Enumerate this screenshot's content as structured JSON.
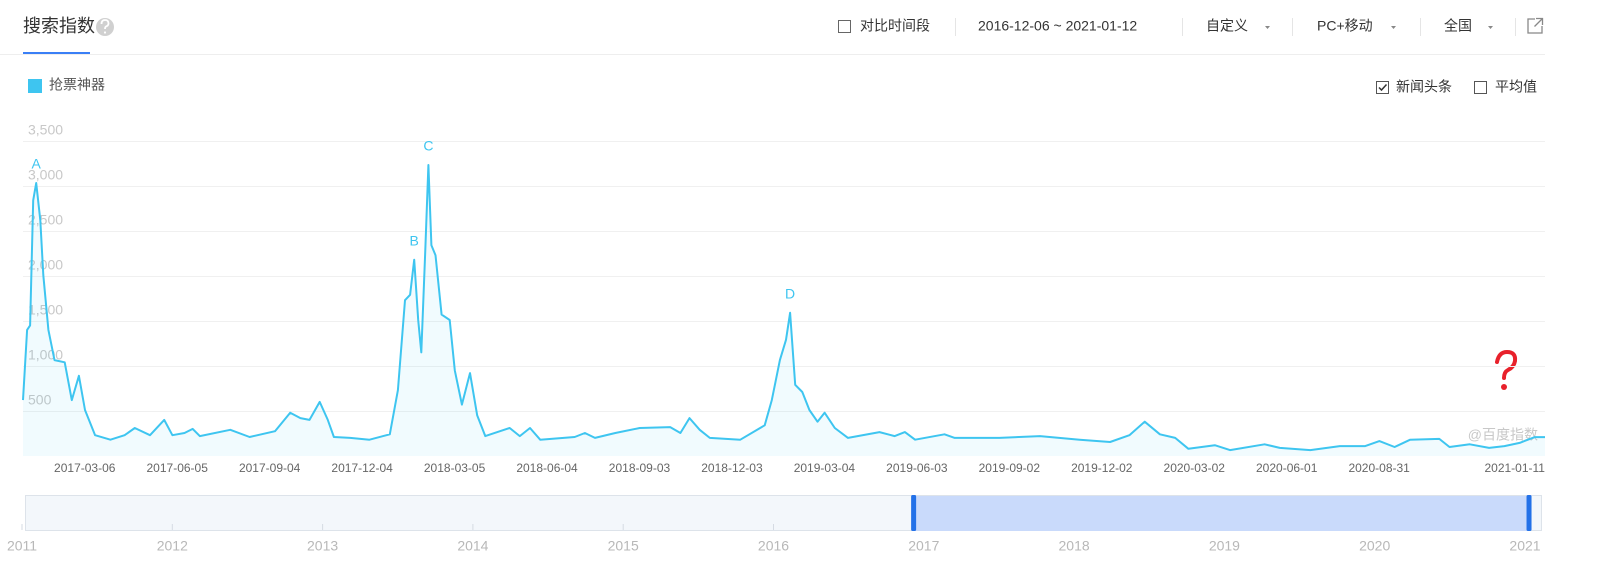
{
  "header": {
    "title": "搜索指数",
    "compare_label": "对比时间段",
    "date_range": "2016-12-06 ~ 2021-01-12",
    "range_mode": "自定义",
    "device": "PC+移动",
    "region": "全国",
    "news_label": "新闻头条",
    "average_label": "平均值"
  },
  "chart_data": {
    "type": "line",
    "watermark": "@百度指数",
    "x": [
      "2016-12-06",
      "2016-12-10",
      "2016-12-13",
      "2016-12-16",
      "2016-12-19",
      "2016-12-23",
      "2016-12-26",
      "2016-12-31",
      "2017-01-06",
      "2017-01-16",
      "2017-01-23",
      "2017-01-30",
      "2017-02-05",
      "2017-02-15",
      "2017-03-02",
      "2017-03-16",
      "2017-03-26",
      "2017-04-10",
      "2017-04-24",
      "2017-05-02",
      "2017-05-14",
      "2017-05-22",
      "2017-05-29",
      "2017-06-28",
      "2017-07-17",
      "2017-08-11",
      "2017-08-26",
      "2017-09-05",
      "2017-09-14",
      "2017-09-24",
      "2017-10-02",
      "2017-10-08",
      "2017-10-24",
      "2017-11-12",
      "2017-12-02",
      "2017-12-10",
      "2017-12-17",
      "2017-12-22",
      "2017-12-26",
      "2017-12-30",
      "2018-01-02",
      "2018-01-06",
      "2018-01-09",
      "2018-01-12",
      "2018-01-16",
      "2018-01-22",
      "2018-01-30",
      "2018-02-04",
      "2018-02-11",
      "2018-02-19",
      "2018-02-26",
      "2018-03-06",
      "2018-03-30",
      "2018-04-09",
      "2018-04-19",
      "2018-04-29",
      "2018-06-02",
      "2018-06-12",
      "2018-06-22",
      "2018-07-12",
      "2018-08-05",
      "2018-09-04",
      "2018-09-14",
      "2018-09-23",
      "2018-10-03",
      "2018-10-13",
      "2018-11-12",
      "2018-12-06",
      "2018-12-13",
      "2018-12-21",
      "2018-12-27",
      "2018-12-31",
      "2019-01-05",
      "2019-01-12",
      "2019-01-19",
      "2019-01-27",
      "2019-02-03",
      "2019-02-13",
      "2019-02-26",
      "2019-03-29",
      "2019-04-13",
      "2019-04-23",
      "2019-05-03",
      "2019-06-01",
      "2019-06-11",
      "2019-07-25",
      "2019-09-03",
      "2019-10-12",
      "2019-11-11",
      "2019-11-30",
      "2019-12-15",
      "2019-12-30",
      "2020-01-14",
      "2020-01-27",
      "2020-02-22",
      "2020-03-08",
      "2020-04-11",
      "2020-04-26",
      "2020-05-26",
      "2020-06-24",
      "2020-07-19",
      "2020-08-02",
      "2020-08-17",
      "2020-09-01",
      "2020-09-30",
      "2020-10-10",
      "2020-10-30",
      "2020-11-18",
      "2020-12-03",
      "2020-12-18",
      "2021-01-02",
      "2021-01-12"
    ],
    "series": [
      {
        "name": "抢票神器",
        "color": "#3ec5f0",
        "values": [
          621,
          1401,
          1451,
          2841,
          3033,
          2621,
          2011,
          1401,
          1066,
          1041,
          621,
          891,
          511,
          231,
          181,
          231,
          311,
          231,
          401,
          231,
          256,
          301,
          221,
          291,
          211,
          276,
          481,
          421,
          401,
          601,
          401,
          211,
          201,
          181,
          241,
          731,
          1731,
          1791,
          2181,
          1511,
          1151,
          2291,
          3233,
          2341,
          2231,
          1571,
          1511,
          951,
          571,
          921,
          451,
          221,
          311,
          221,
          311,
          181,
          211,
          256,
          201,
          256,
          311,
          321,
          256,
          421,
          291,
          201,
          181,
          341,
          621,
          1066,
          1291,
          1591,
          791,
          711,
          511,
          381,
          481,
          311,
          201,
          266,
          221,
          266,
          181,
          241,
          201,
          201,
          221,
          181,
          156,
          231,
          381,
          241,
          201,
          80,
          120,
          65,
          130,
          90,
          65,
          110,
          110,
          165,
          100,
          180,
          190,
          100,
          130,
          90,
          110,
          145,
          210,
          210
        ]
      }
    ],
    "annotations": [
      {
        "label": "A",
        "x": "2016-12-19"
      },
      {
        "label": "B",
        "x": "2017-12-26"
      },
      {
        "label": "C",
        "x": "2018-01-09"
      },
      {
        "label": "D",
        "x": "2018-12-31"
      }
    ],
    "xlim": [
      "2016-12-06",
      "2021-01-12"
    ],
    "xticks": [
      "2017-03-06",
      "2017-06-05",
      "2017-09-04",
      "2017-12-04",
      "2018-03-05",
      "2018-06-04",
      "2018-09-03",
      "2018-12-03",
      "2019-03-04",
      "2019-06-03",
      "2019-09-02",
      "2019-12-02",
      "2020-03-02",
      "2020-06-01",
      "2020-08-31",
      "2021-01-11"
    ],
    "ylim": [
      0,
      3500
    ],
    "yticks": [
      500,
      {
        "value": 1000,
        "label": "1,000"
      },
      {
        "value": 1500,
        "label": "1,500"
      },
      {
        "value": 2000,
        "label": "2,000"
      },
      {
        "value": 2500,
        "label": "2,500"
      },
      {
        "value": 3000,
        "label": "3,000"
      },
      {
        "value": 3500,
        "label": "3,500"
      }
    ],
    "grid": true,
    "navigator": {
      "xlim": [
        2011,
        2021
      ],
      "xticks": [
        2011,
        2012,
        2013,
        2014,
        2015,
        2016,
        2017,
        2018,
        2019,
        2020,
        2021
      ]
    }
  }
}
